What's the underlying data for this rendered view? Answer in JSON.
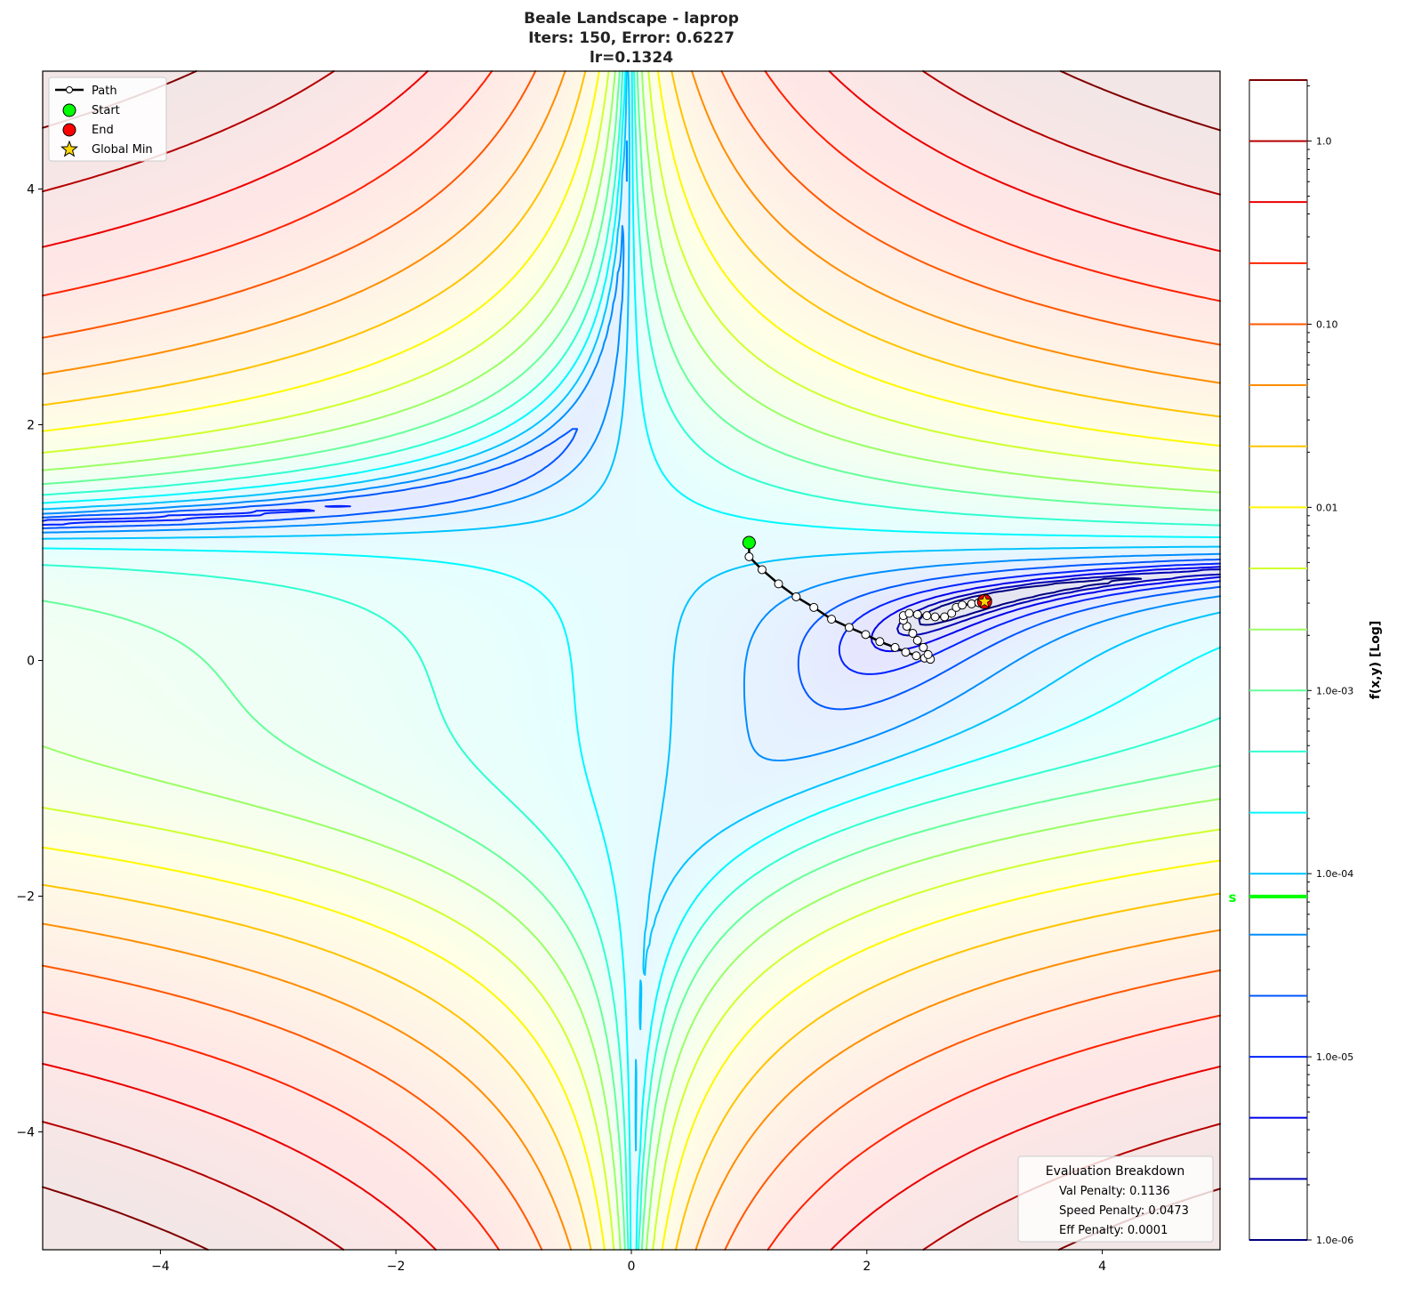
{
  "chart_data": {
    "type": "contour",
    "function": "Beale",
    "title_lines": [
      "Beale Landscape - laprop",
      "Iters: 150, Error: 0.6227",
      "lr=0.1324"
    ],
    "xlim": [
      -5,
      5
    ],
    "ylim": [
      -5,
      5
    ],
    "x_ticks": [
      -4,
      -2,
      0,
      2,
      4
    ],
    "y_ticks": [
      -4,
      -2,
      0,
      2,
      4
    ],
    "x_tick_labels": [
      "−4",
      "−2",
      "0",
      "2",
      "4"
    ],
    "y_tick_labels": [
      "−4",
      "−2",
      "0",
      "2",
      "4"
    ],
    "colormap": "jet",
    "colorbar": {
      "label": "f(x,y) [Log]",
      "scale": "log",
      "range": [
        1e-06,
        2.154
      ],
      "levels_log10": [
        -6,
        -5.667,
        -5.333,
        -5,
        -4.667,
        -4.333,
        -4,
        -3.667,
        -3.333,
        -3,
        -2.667,
        -2.333,
        -2,
        -1.667,
        -1.333,
        -1,
        -0.667,
        -0.333,
        0,
        0.333
      ],
      "tick_values": [
        1.0,
        0.1,
        0.01,
        0.001,
        0.0001,
        1e-05,
        1e-06
      ],
      "tick_labels": [
        "1.0",
        "0.10",
        "0.01",
        "1.0e-03",
        "1.0e-04",
        "1.0e-05",
        "1.0e-06"
      ],
      "marker": {
        "label": "s",
        "value": 7.5e-05,
        "color": "#00ff00"
      }
    },
    "path": {
      "name": "Path",
      "points": [
        [
          1.0,
          1.0
        ],
        [
          1.0,
          0.88
        ],
        [
          1.11,
          0.77
        ],
        [
          1.25,
          0.65
        ],
        [
          1.4,
          0.54
        ],
        [
          1.55,
          0.45
        ],
        [
          1.7,
          0.35
        ],
        [
          1.85,
          0.28
        ],
        [
          1.99,
          0.22
        ],
        [
          2.11,
          0.16
        ],
        [
          2.24,
          0.11
        ],
        [
          2.33,
          0.07
        ],
        [
          2.42,
          0.04
        ],
        [
          2.49,
          0.02
        ],
        [
          2.54,
          0.01
        ],
        [
          2.52,
          0.05
        ],
        [
          2.48,
          0.11
        ],
        [
          2.43,
          0.17
        ],
        [
          2.39,
          0.23
        ],
        [
          2.34,
          0.29
        ],
        [
          2.31,
          0.34
        ],
        [
          2.31,
          0.38
        ],
        [
          2.36,
          0.4
        ],
        [
          2.43,
          0.39
        ],
        [
          2.51,
          0.38
        ],
        [
          2.58,
          0.37
        ],
        [
          2.66,
          0.37
        ],
        [
          2.72,
          0.4
        ],
        [
          2.76,
          0.45
        ],
        [
          2.81,
          0.47
        ],
        [
          2.89,
          0.48
        ],
        [
          2.95,
          0.49
        ],
        [
          3.0,
          0.5
        ]
      ]
    },
    "start": {
      "name": "Start",
      "x": 1.0,
      "y": 1.0,
      "color": "#00ff00"
    },
    "end": {
      "name": "End",
      "x": 3.0,
      "y": 0.5,
      "color": "#ff0000"
    },
    "global_min": {
      "name": "Global Min",
      "x": 3.0,
      "y": 0.5,
      "color": "#ffd700"
    },
    "legend": {
      "placement": "top-left",
      "entries": [
        "Path",
        "Start",
        "End",
        "Global Min"
      ]
    },
    "annotation": {
      "title": "Evaluation Breakdown",
      "lines": [
        "Val Penalty: 0.1136",
        "Speed Penalty: 0.0473",
        "Eff Penalty: 0.0001"
      ],
      "placement": "bottom-right"
    }
  }
}
